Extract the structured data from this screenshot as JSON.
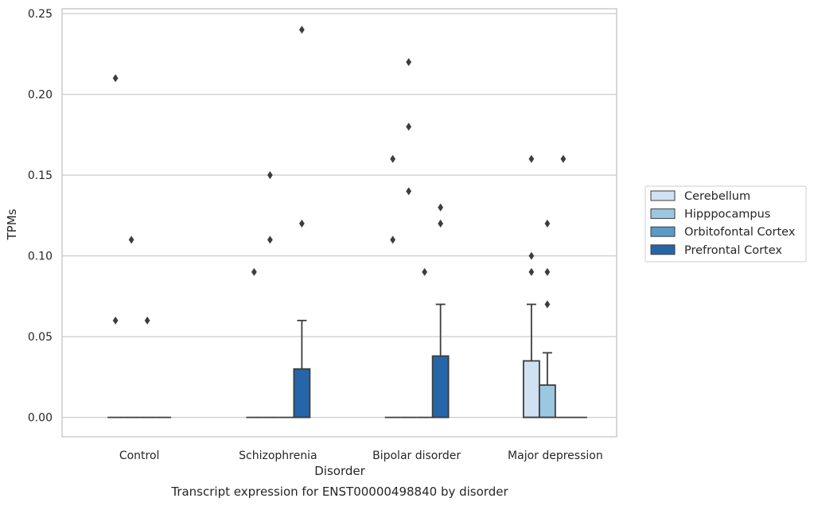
{
  "chart_data": {
    "type": "boxplot",
    "title": "Transcript expression for ENST00000498840 by disorder",
    "xlabel": "Disorder",
    "ylabel": "TPMs",
    "ylim": [
      -0.012,
      0.253
    ],
    "yticks": [
      0.0,
      0.05,
      0.1,
      0.15,
      0.2,
      0.25
    ],
    "ytick_labels": [
      "0.00",
      "0.05",
      "0.10",
      "0.15",
      "0.20",
      "0.25"
    ],
    "grid": "horizontal",
    "legend_position": "right",
    "categories": [
      "Control",
      "Schizophrenia",
      "Bipolar disorder",
      "Major depression"
    ],
    "series": [
      {
        "name": "Cerebellum",
        "color": "#d0e1f2",
        "boxes": [
          {
            "q1": 0,
            "median": 0,
            "q3": 0,
            "whisker_low": 0,
            "whisker_high": 0,
            "outliers": [
              0.21,
              0.06
            ]
          },
          {
            "q1": 0,
            "median": 0,
            "q3": 0,
            "whisker_low": 0,
            "whisker_high": 0,
            "outliers": [
              0.09
            ]
          },
          {
            "q1": 0,
            "median": 0,
            "q3": 0,
            "whisker_low": 0,
            "whisker_high": 0,
            "outliers": [
              0.16,
              0.11
            ]
          },
          {
            "q1": 0,
            "median": 0,
            "q3": 0.035,
            "whisker_low": 0,
            "whisker_high": 0.07,
            "outliers": [
              0.16,
              0.1,
              0.09
            ]
          }
        ]
      },
      {
        "name": "Hipppocampus",
        "color": "#9ac8e0",
        "boxes": [
          {
            "q1": 0,
            "median": 0,
            "q3": 0,
            "whisker_low": 0,
            "whisker_high": 0,
            "outliers": [
              0.11
            ]
          },
          {
            "q1": 0,
            "median": 0,
            "q3": 0,
            "whisker_low": 0,
            "whisker_high": 0,
            "outliers": [
              0.15,
              0.11
            ]
          },
          {
            "q1": 0,
            "median": 0,
            "q3": 0,
            "whisker_low": 0,
            "whisker_high": 0,
            "outliers": [
              0.22,
              0.18,
              0.14
            ]
          },
          {
            "q1": 0,
            "median": 0,
            "q3": 0.02,
            "whisker_low": 0,
            "whisker_high": 0.04,
            "outliers": [
              0.12,
              0.09,
              0.07
            ]
          }
        ]
      },
      {
        "name": "Orbitofontal Cortex",
        "color": "#5a9ac9",
        "boxes": [
          {
            "q1": 0,
            "median": 0,
            "q3": 0,
            "whisker_low": 0,
            "whisker_high": 0,
            "outliers": [
              0.06
            ]
          },
          {
            "q1": 0,
            "median": 0,
            "q3": 0,
            "whisker_low": 0,
            "whisker_high": 0,
            "outliers": []
          },
          {
            "q1": 0,
            "median": 0,
            "q3": 0,
            "whisker_low": 0,
            "whisker_high": 0,
            "outliers": [
              0.09
            ]
          },
          {
            "q1": 0,
            "median": 0,
            "q3": 0,
            "whisker_low": 0,
            "whisker_high": 0,
            "outliers": [
              0.16
            ]
          }
        ]
      },
      {
        "name": "Prefrontal Cortex",
        "color": "#2566a8",
        "boxes": [
          {
            "q1": 0,
            "median": 0,
            "q3": 0,
            "whisker_low": 0,
            "whisker_high": 0,
            "outliers": []
          },
          {
            "q1": 0,
            "median": 0,
            "q3": 0.03,
            "whisker_low": 0,
            "whisker_high": 0.06,
            "outliers": [
              0.24,
              0.12
            ]
          },
          {
            "q1": 0,
            "median": 0,
            "q3": 0.038,
            "whisker_low": 0,
            "whisker_high": 0.07,
            "outliers": [
              0.13,
              0.12
            ]
          },
          {
            "q1": 0,
            "median": 0,
            "q3": 0,
            "whisker_low": 0,
            "whisker_high": 0,
            "outliers": []
          }
        ]
      }
    ]
  }
}
